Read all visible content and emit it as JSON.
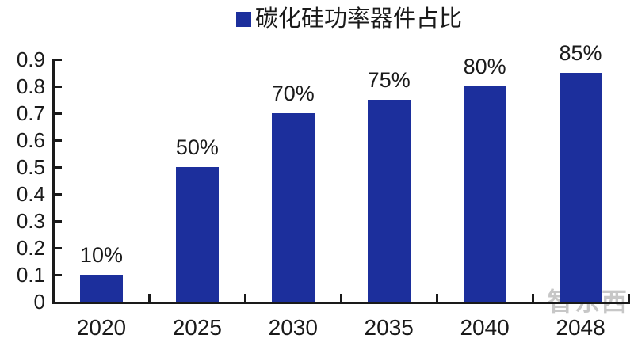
{
  "chart_data": {
    "type": "bar",
    "title": "",
    "xlabel": "",
    "ylabel": "",
    "series_name": "碳化硅功率器件占比",
    "legend_position": "top-center",
    "categories": [
      "2020",
      "2025",
      "2030",
      "2035",
      "2040",
      "2048"
    ],
    "values": [
      0.1,
      0.5,
      0.7,
      0.75,
      0.8,
      0.85
    ],
    "data_labels": [
      "10%",
      "50%",
      "70%",
      "75%",
      "80%",
      "85%"
    ],
    "y_tick_labels": [
      "0.9",
      "0.8",
      "0.7",
      "0.6",
      "0.5",
      "0.4",
      "0.3",
      "0.2",
      "0.1",
      "0"
    ],
    "ylim": [
      0,
      0.9
    ],
    "grid": false,
    "bar_color": "#1C2F9C",
    "axis_color": "#1A1A1A",
    "text_color": "#1A1A1A"
  },
  "watermark": {
    "text": "智东西"
  }
}
